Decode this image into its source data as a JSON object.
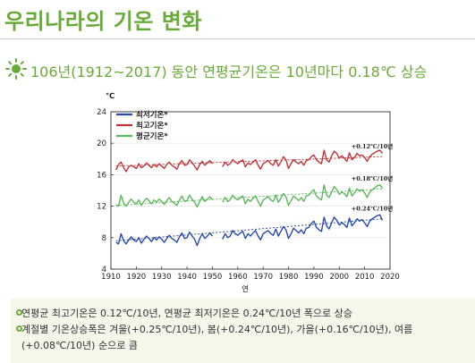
{
  "header": {
    "title": "우리나라의 기온 변화",
    "subtitle": "106년(1912~2017) 동안 연평균기온은 10년마다 0.18℃ 상승"
  },
  "notes": [
    "연평균 최고기온은 0.12℃/10년, 연평균 최저기온은 0.24℃/10년 폭으로 상승",
    "계절별 기온상승폭은 겨울(+0.25℃/10년), 봄(+0.24℃/10년), 가을(+0.16℃/10년), 여름(+0.08℃/10년) 순으로 큼"
  ],
  "colors": {
    "accent": "#6aaa3a",
    "max": "#c0353a",
    "mean": "#5cb85c",
    "min": "#2a4aa8"
  },
  "chart_data": {
    "type": "line",
    "title": "",
    "xlabel": "연",
    "ylabel": "℃",
    "xlim": [
      1910,
      2020
    ],
    "ylim": [
      4,
      24
    ],
    "xticks": [
      1910,
      1920,
      1930,
      1940,
      1950,
      1960,
      1970,
      1980,
      1990,
      2000,
      2010,
      2020
    ],
    "yticks": [
      4,
      8,
      12,
      16,
      20,
      24
    ],
    "legend_position": "top-left",
    "gap": [
      1950,
      1953
    ],
    "x": [
      1912,
      1913,
      1914,
      1915,
      1916,
      1917,
      1918,
      1919,
      1920,
      1921,
      1922,
      1923,
      1924,
      1925,
      1926,
      1927,
      1928,
      1929,
      1930,
      1931,
      1932,
      1933,
      1934,
      1935,
      1936,
      1937,
      1938,
      1939,
      1940,
      1941,
      1942,
      1943,
      1944,
      1945,
      1946,
      1947,
      1948,
      1949,
      1950,
      1954,
      1955,
      1956,
      1957,
      1958,
      1959,
      1960,
      1961,
      1962,
      1963,
      1964,
      1965,
      1966,
      1967,
      1968,
      1969,
      1970,
      1971,
      1972,
      1973,
      1974,
      1975,
      1976,
      1977,
      1978,
      1979,
      1980,
      1981,
      1982,
      1983,
      1984,
      1985,
      1986,
      1987,
      1988,
      1989,
      1990,
      1991,
      1992,
      1993,
      1994,
      1995,
      1996,
      1997,
      1998,
      1999,
      2000,
      2001,
      2002,
      2003,
      2004,
      2005,
      2006,
      2007,
      2008,
      2009,
      2010,
      2011,
      2012,
      2013,
      2014,
      2015,
      2016,
      2017
    ],
    "series": [
      {
        "name": "최고기온*",
        "key": "max",
        "trend_label": "+0.12℃/10년",
        "trend": [
          17.1,
          18.3
        ],
        "values": [
          16.6,
          17.3,
          17.6,
          16.9,
          16.4,
          17.0,
          17.2,
          17.0,
          16.8,
          17.4,
          16.9,
          17.1,
          17.5,
          17.2,
          16.9,
          17.3,
          17.0,
          17.4,
          17.1,
          16.8,
          17.3,
          17.6,
          17.2,
          17.0,
          16.7,
          17.4,
          17.8,
          17.2,
          17.3,
          17.9,
          17.5,
          17.1,
          16.6,
          17.3,
          17.7,
          17.2,
          17.5,
          17.8,
          17.4,
          17.0,
          17.6,
          17.2,
          17.4,
          17.9,
          17.6,
          17.4,
          17.7,
          17.9,
          17.0,
          17.5,
          17.3,
          17.6,
          17.9,
          17.2,
          16.7,
          17.4,
          17.6,
          17.8,
          17.4,
          17.2,
          17.9,
          17.1,
          17.6,
          18.3,
          17.9,
          16.8,
          17.4,
          17.9,
          17.6,
          17.4,
          17.7,
          17.2,
          17.8,
          17.9,
          18.3,
          18.5,
          17.9,
          17.6,
          17.4,
          19.1,
          17.9,
          17.6,
          18.4,
          19.0,
          18.7,
          18.1,
          18.4,
          18.1,
          17.7,
          18.8,
          17.9,
          18.2,
          18.7,
          18.4,
          18.5,
          18.2,
          17.7,
          18.3,
          18.6,
          18.8,
          19.0,
          19.1,
          18.7
        ]
      },
      {
        "name": "평균기온*",
        "key": "mean",
        "trend_label": "+0.18℃/10년",
        "trend": [
          12.1,
          14.2
        ],
        "values": [
          12.2,
          12.0,
          13.4,
          12.4,
          12.0,
          12.5,
          12.9,
          12.5,
          12.3,
          12.8,
          12.1,
          12.6,
          13.0,
          12.7,
          12.3,
          12.8,
          12.5,
          12.9,
          12.6,
          12.2,
          12.7,
          13.1,
          12.6,
          12.4,
          12.1,
          12.8,
          13.3,
          12.6,
          12.7,
          13.4,
          12.9,
          12.5,
          11.9,
          12.6,
          13.2,
          12.6,
          12.9,
          13.2,
          12.8,
          12.5,
          13.1,
          12.6,
          12.8,
          13.4,
          13.0,
          12.8,
          13.1,
          13.3,
          12.3,
          12.9,
          12.6,
          13.0,
          13.3,
          12.6,
          12.0,
          12.8,
          13.0,
          13.2,
          12.8,
          12.6,
          13.4,
          12.5,
          13.0,
          13.6,
          13.2,
          12.1,
          12.7,
          13.3,
          13.0,
          12.7,
          13.1,
          12.6,
          13.3,
          13.4,
          13.8,
          14.1,
          13.3,
          13.0,
          12.8,
          14.7,
          13.4,
          13.1,
          13.8,
          14.5,
          14.1,
          13.5,
          13.8,
          13.6,
          13.2,
          14.3,
          13.3,
          13.7,
          14.2,
          13.9,
          14.1,
          13.7,
          13.1,
          13.8,
          14.1,
          14.3,
          14.6,
          14.7,
          14.3
        ]
      },
      {
        "name": "최저기온*",
        "key": "min",
        "trend_label": "+0.24℃/10년",
        "trend": [
          7.6,
          10.4
        ],
        "values": [
          7.4,
          7.2,
          8.5,
          7.6,
          7.2,
          7.7,
          8.1,
          7.7,
          7.5,
          8.0,
          7.3,
          7.8,
          8.2,
          7.9,
          7.5,
          8.0,
          7.7,
          8.1,
          7.8,
          7.4,
          7.9,
          8.3,
          7.9,
          7.7,
          7.4,
          8.1,
          8.6,
          7.9,
          8.0,
          8.7,
          8.2,
          7.8,
          7.0,
          7.9,
          8.5,
          7.9,
          8.2,
          8.6,
          8.2,
          7.8,
          8.5,
          8.0,
          8.2,
          8.9,
          8.5,
          8.3,
          8.6,
          8.8,
          7.9,
          8.5,
          8.2,
          8.6,
          8.9,
          8.2,
          7.7,
          8.5,
          8.7,
          8.9,
          8.5,
          8.3,
          9.1,
          8.2,
          8.8,
          9.4,
          9.0,
          7.9,
          8.5,
          9.2,
          8.9,
          8.6,
          9.0,
          8.5,
          9.2,
          9.3,
          9.8,
          10.1,
          9.3,
          9.0,
          8.8,
          10.6,
          9.5,
          9.1,
          9.9,
          10.6,
          10.2,
          9.6,
          9.9,
          9.7,
          9.3,
          10.5,
          9.5,
          9.9,
          10.4,
          10.1,
          10.3,
          9.9,
          9.4,
          10.1,
          10.4,
          10.6,
          10.8,
          10.9,
          10.2
        ]
      }
    ]
  }
}
